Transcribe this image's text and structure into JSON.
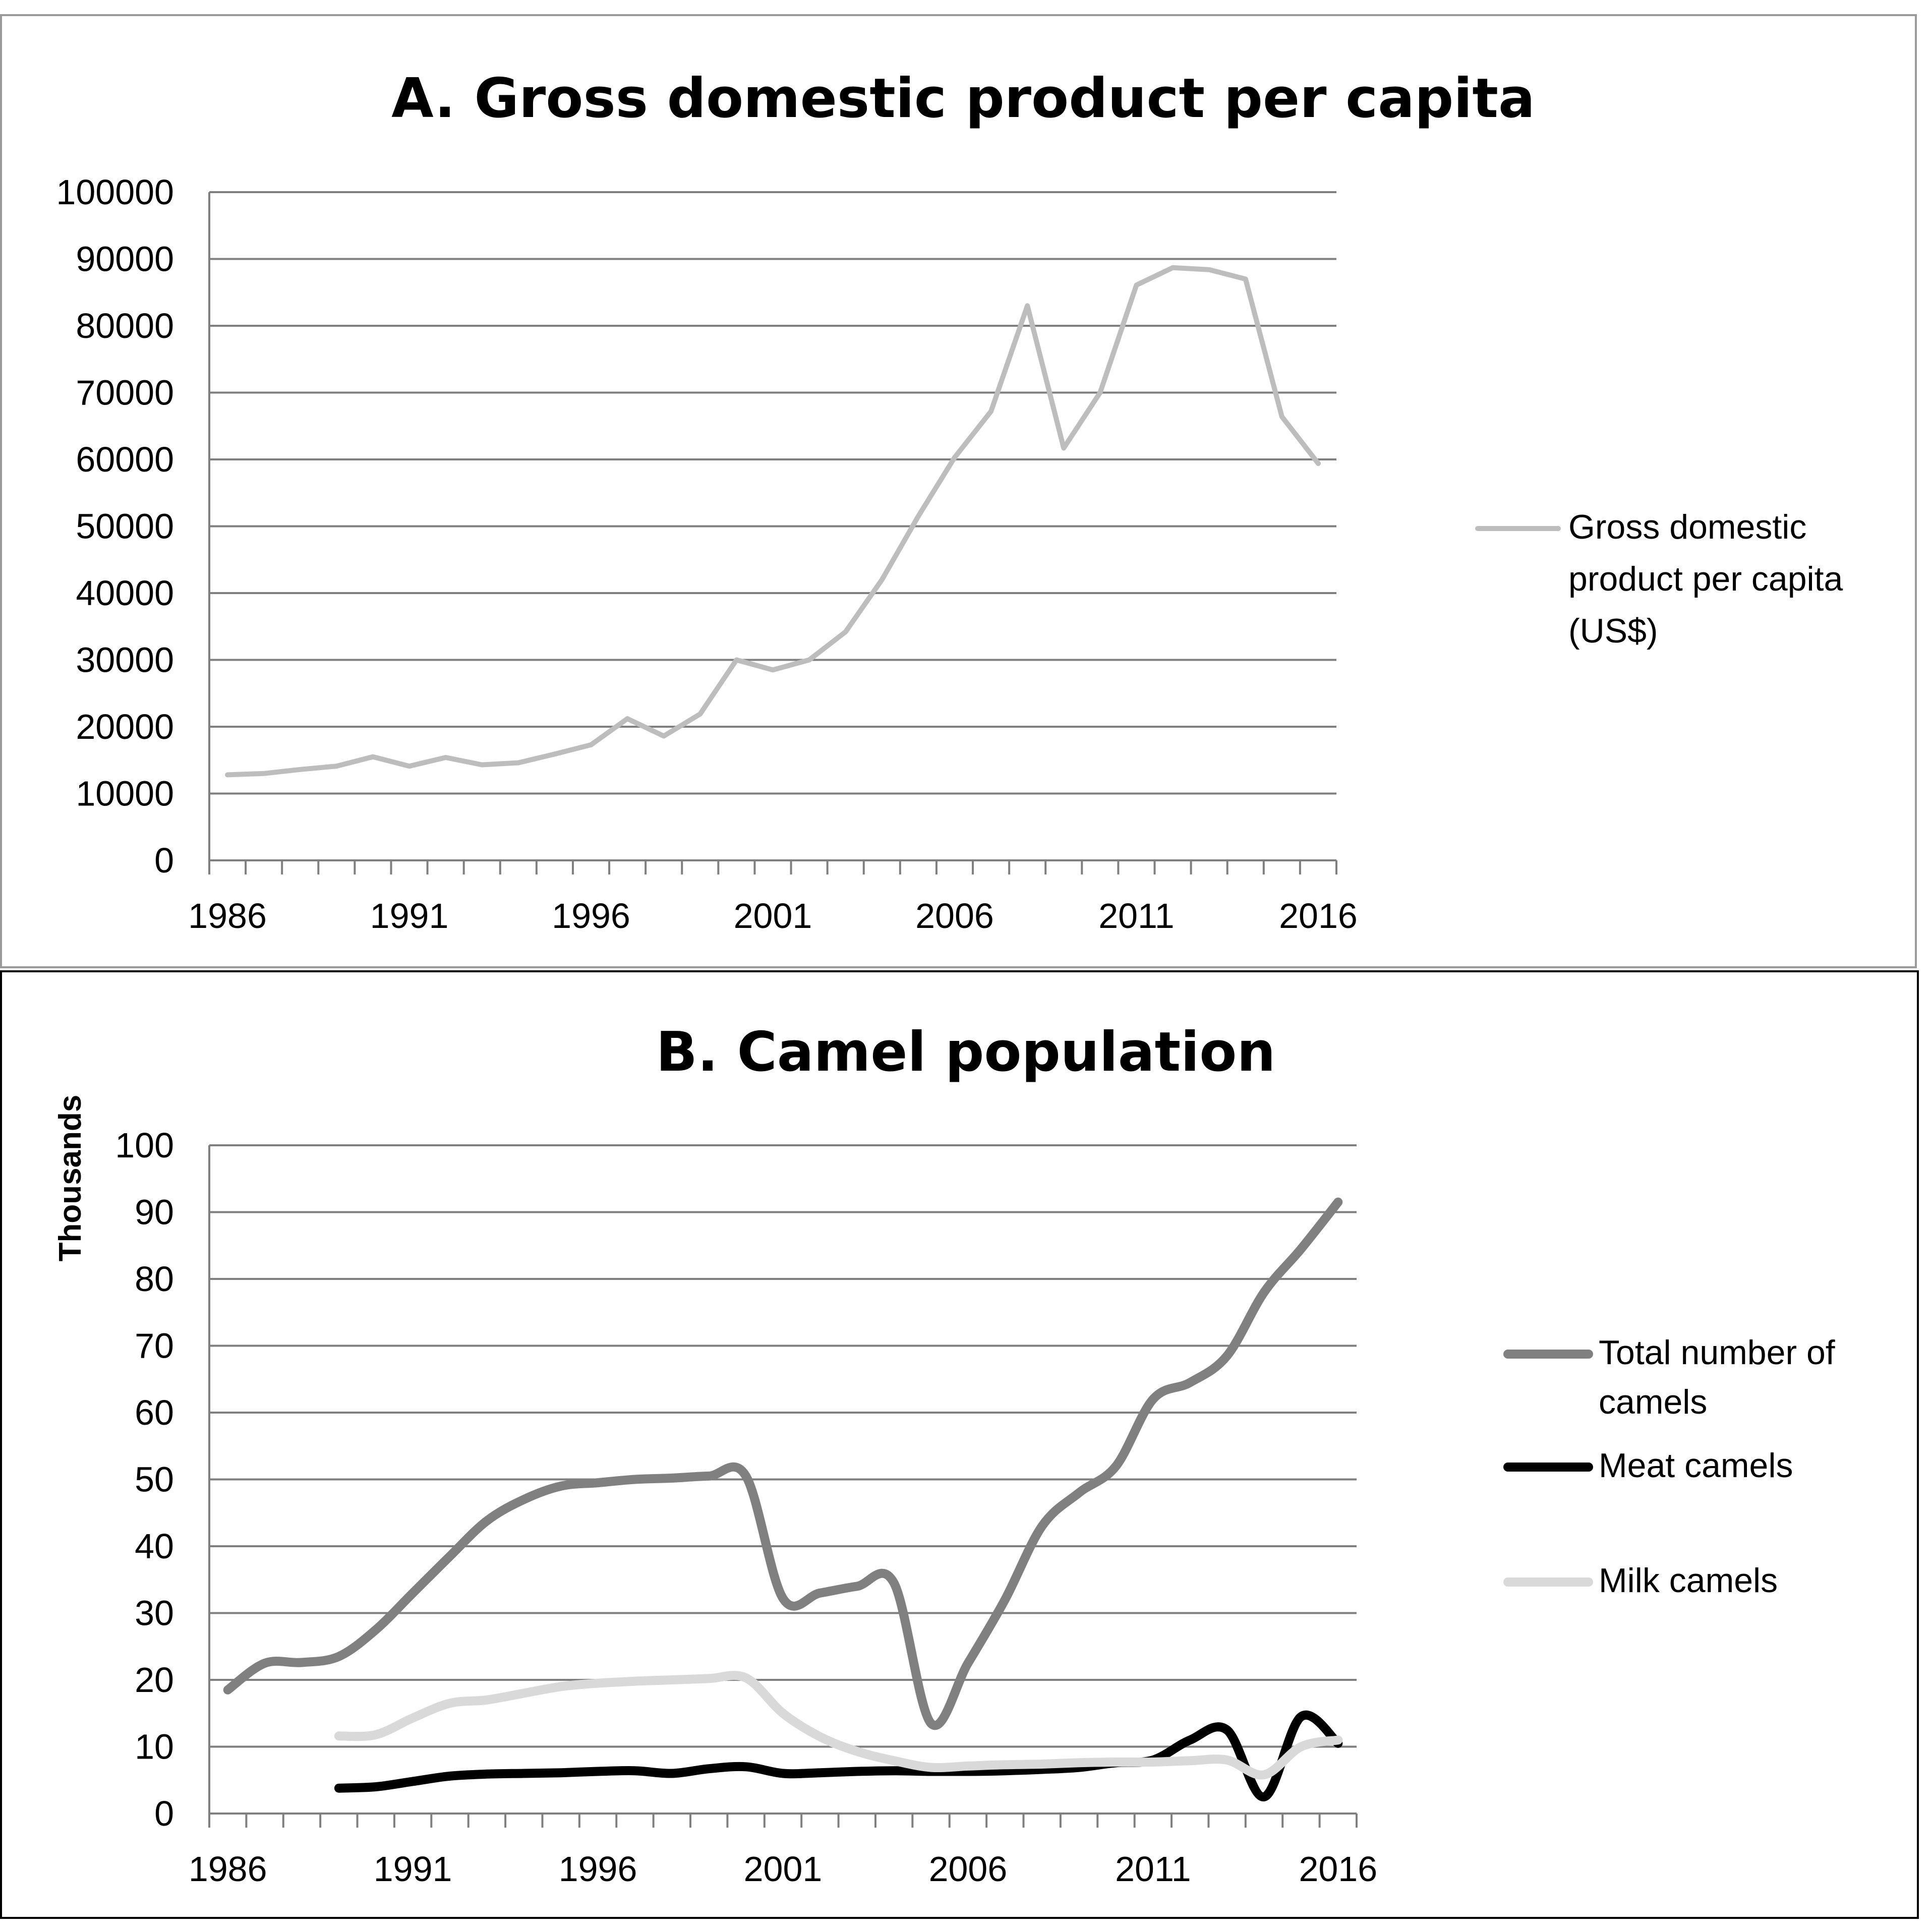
{
  "chart_data": [
    {
      "type": "line",
      "title": "A. Gross domestic product per capita",
      "xlabel": "",
      "ylabel": "",
      "x_ticks": [
        "1986",
        "1991",
        "1996",
        "2001",
        "2006",
        "2011",
        "2016"
      ],
      "y_ticks": [
        "0",
        "10000",
        "20000",
        "30000",
        "40000",
        "50000",
        "60000",
        "70000",
        "80000",
        "90000",
        "100000"
      ],
      "ylim": [
        0,
        100000
      ],
      "xlim": [
        1985.5,
        2016.5
      ],
      "grid": true,
      "legend_position": "right",
      "series": [
        {
          "name": "Gross domestic product per capita (US$)",
          "legend_lines": [
            "Gross domestic",
            "product per capita",
            "(US$)"
          ],
          "color": "#bdbdbd",
          "x": [
            1986,
            1987,
            1988,
            1989,
            1990,
            1991,
            1992,
            1993,
            1994,
            1995,
            1996,
            1997,
            1998,
            1999,
            2000,
            2001,
            2002,
            2003,
            2004,
            2005,
            2006,
            2007,
            2008,
            2009,
            2010,
            2011,
            2012,
            2013,
            2014,
            2015,
            2016
          ],
          "values": [
            12800,
            13000,
            13600,
            14100,
            15500,
            14100,
            15400,
            14300,
            14600,
            15900,
            17300,
            21200,
            18600,
            21900,
            30000,
            28500,
            30000,
            34200,
            42000,
            51500,
            60300,
            67200,
            83000,
            61700,
            70000,
            86100,
            88700,
            88400,
            87000,
            66400,
            59400
          ]
        }
      ]
    },
    {
      "type": "line",
      "title": "B. Camel population",
      "xlabel": "",
      "ylabel": "Thousands",
      "x_ticks": [
        "1986",
        "1991",
        "1996",
        "2001",
        "2006",
        "2011",
        "2016"
      ],
      "y_ticks": [
        "0",
        "10",
        "20",
        "30",
        "40",
        "50",
        "60",
        "70",
        "80",
        "90",
        "100"
      ],
      "ylim": [
        0,
        100
      ],
      "xlim": [
        1985.5,
        2016.5
      ],
      "grid": true,
      "legend_position": "right",
      "series": [
        {
          "name": "Total number of camels",
          "legend_lines": [
            "Total number of",
            "camels"
          ],
          "color": "#808080",
          "x": [
            1986,
            1987,
            1988,
            1989,
            1990,
            1991,
            1992,
            1993,
            1994,
            1995,
            1996,
            1997,
            1998,
            1999,
            2000,
            2001,
            2002,
            2003,
            2004,
            2005,
            2006,
            2007,
            2008,
            2009,
            2010,
            2011,
            2012,
            2013,
            2014,
            2015,
            2016
          ],
          "values": [
            18.5,
            22.5,
            22.6,
            23.5,
            27.5,
            33.0,
            38.5,
            43.8,
            47.0,
            49.0,
            49.5,
            50.0,
            50.2,
            50.5,
            50.5,
            32.2,
            33.0,
            34.0,
            34.5,
            13.5,
            22.5,
            32.0,
            43.0,
            48.0,
            52.0,
            62.0,
            64.5,
            68.5,
            78.0,
            84.5,
            91.5
          ]
        },
        {
          "name": "Meat camels",
          "legend_lines": [
            "Meat camels"
          ],
          "color": "#000000",
          "x": [
            1989,
            1990,
            1991,
            1992,
            1993,
            1994,
            1995,
            1996,
            1997,
            1998,
            1999,
            2000,
            2001,
            2002,
            2003,
            2004,
            2005,
            2006,
            2007,
            2008,
            2009,
            2010,
            2011,
            2012,
            2013,
            2014,
            2015,
            2016
          ],
          "values": [
            3.8,
            4.0,
            4.8,
            5.6,
            5.9,
            6.0,
            6.1,
            6.3,
            6.4,
            6.0,
            6.7,
            7.0,
            6.0,
            6.1,
            6.3,
            6.4,
            6.3,
            6.3,
            6.4,
            6.6,
            6.9,
            7.6,
            8.0,
            11.0,
            12.5,
            2.5,
            14.5,
            10.5
          ]
        },
        {
          "name": "Milk camels",
          "legend_lines": [
            "Milk camels"
          ],
          "color": "#d9d9d9",
          "x": [
            1989,
            1990,
            1991,
            1992,
            1993,
            1994,
            1995,
            1996,
            1997,
            1998,
            1999,
            2000,
            2001,
            2002,
            2003,
            2004,
            2005,
            2006,
            2007,
            2008,
            2009,
            2010,
            2011,
            2012,
            2013,
            2014,
            2015,
            2016
          ],
          "values": [
            11.6,
            11.8,
            14.3,
            16.5,
            17.0,
            18.0,
            19.0,
            19.5,
            19.8,
            20.0,
            20.2,
            20.3,
            15.0,
            11.5,
            9.3,
            7.9,
            6.9,
            7.1,
            7.3,
            7.4,
            7.6,
            7.7,
            7.7,
            7.9,
            8.0,
            5.8,
            10.0,
            11.0
          ]
        }
      ]
    }
  ]
}
